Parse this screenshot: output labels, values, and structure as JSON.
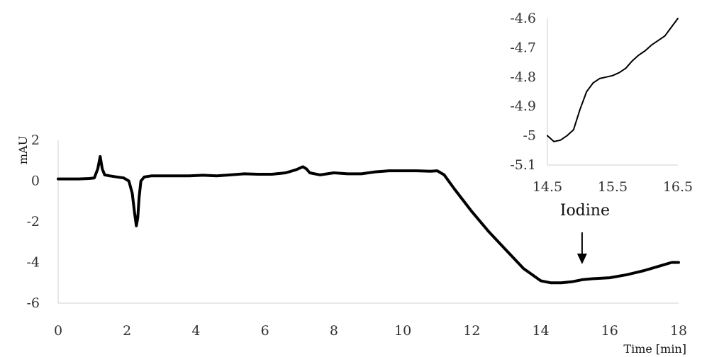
{
  "chart_data": [
    {
      "type": "line",
      "title": "",
      "xlabel": "Time [min]",
      "ylabel": "mAU",
      "xlim": [
        0,
        18
      ],
      "ylim": [
        -6,
        2
      ],
      "xticks": [
        0,
        2,
        4,
        6,
        8,
        10,
        12,
        14,
        16,
        18
      ],
      "yticks": [
        2,
        0,
        -2,
        -4,
        -6
      ],
      "grid": false,
      "legend": "none",
      "color": "#000000",
      "series": [
        {
          "x": [
            0,
            0.3,
            0.6,
            0.9,
            1.05,
            1.15,
            1.22,
            1.28,
            1.35,
            1.5,
            1.7,
            1.9,
            2.05,
            2.15,
            2.22,
            2.27,
            2.31,
            2.35,
            2.4,
            2.5,
            2.7,
            3.0,
            3.4,
            3.8,
            4.2,
            4.6,
            5.0,
            5.4,
            5.8,
            6.2,
            6.6,
            6.9,
            7.1,
            7.2,
            7.3,
            7.6,
            8.0,
            8.4,
            8.8,
            9.2,
            9.6,
            10.0,
            10.4,
            10.8,
            11.0,
            11.2,
            11.5,
            12.0,
            12.5,
            13.0,
            13.5,
            14.0,
            14.3,
            14.6,
            14.9,
            15.2,
            15.5,
            16.0,
            16.5,
            17.0,
            17.5,
            17.8,
            18.0
          ],
          "y": [
            0.1,
            0.1,
            0.1,
            0.12,
            0.15,
            0.6,
            1.2,
            0.6,
            0.3,
            0.25,
            0.2,
            0.15,
            0.0,
            -0.6,
            -1.6,
            -2.2,
            -1.8,
            -0.8,
            0.0,
            0.2,
            0.25,
            0.25,
            0.25,
            0.25,
            0.28,
            0.25,
            0.3,
            0.35,
            0.33,
            0.33,
            0.4,
            0.55,
            0.7,
            0.6,
            0.4,
            0.3,
            0.4,
            0.35,
            0.35,
            0.45,
            0.5,
            0.5,
            0.5,
            0.48,
            0.5,
            0.3,
            -0.4,
            -1.5,
            -2.5,
            -3.4,
            -4.3,
            -4.9,
            -5.0,
            -5.0,
            -4.95,
            -4.85,
            -4.8,
            -4.75,
            -4.6,
            -4.4,
            -4.15,
            -4.0,
            -4.0
          ]
        }
      ],
      "annotation": {
        "text": "Iodine",
        "x": 15.2
      }
    },
    {
      "type": "line",
      "title": "",
      "xlabel": "",
      "ylabel": "",
      "xlim": [
        14.5,
        16.5
      ],
      "ylim": [
        -5.1,
        -4.6
      ],
      "xticks": [
        14.5,
        15.5,
        16.5
      ],
      "yticks": [
        -4.6,
        -4.7,
        -4.8,
        -4.9,
        -5,
        -5.1
      ],
      "grid": false,
      "legend": "none",
      "color": "#000000",
      "series": [
        {
          "x": [
            14.5,
            14.6,
            14.7,
            14.8,
            14.9,
            15.0,
            15.1,
            15.2,
            15.3,
            15.4,
            15.5,
            15.6,
            15.7,
            15.8,
            15.9,
            16.0,
            16.1,
            16.2,
            16.3,
            16.4,
            16.5
          ],
          "y": [
            -5.0,
            -5.02,
            -5.015,
            -5.0,
            -4.98,
            -4.91,
            -4.85,
            -4.82,
            -4.805,
            -4.8,
            -4.795,
            -4.785,
            -4.77,
            -4.745,
            -4.725,
            -4.71,
            -4.69,
            -4.675,
            -4.66,
            -4.63,
            -4.6
          ]
        }
      ]
    }
  ]
}
